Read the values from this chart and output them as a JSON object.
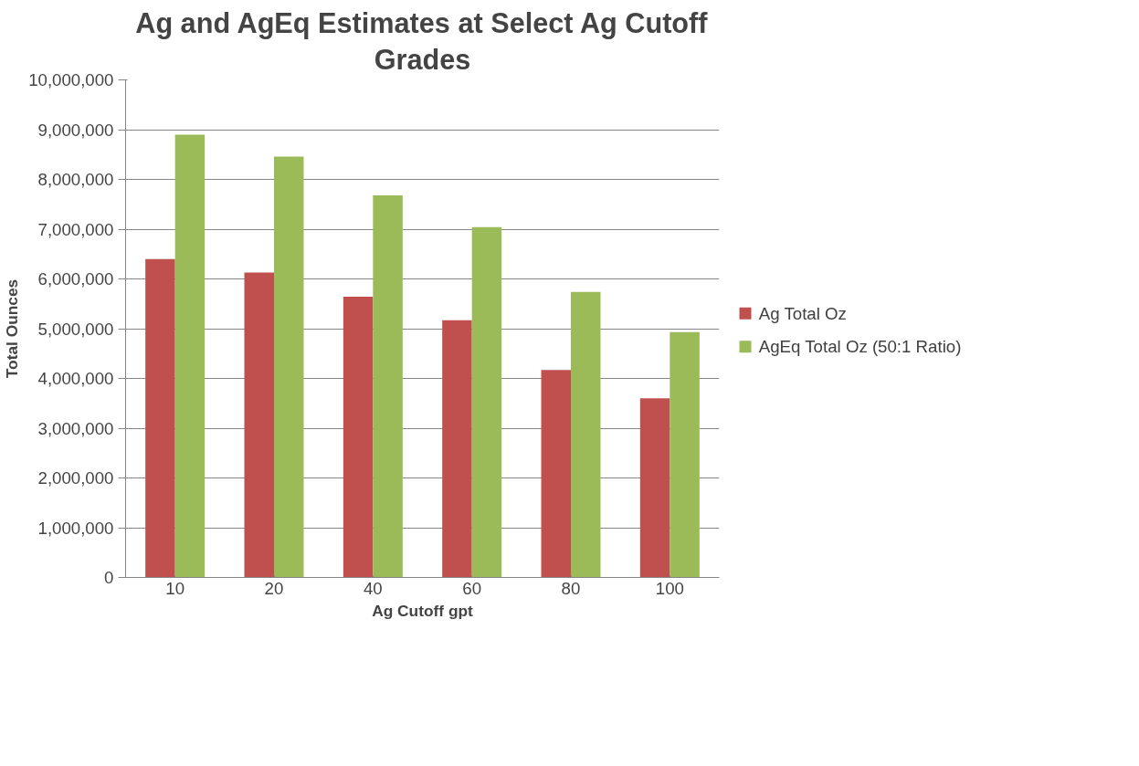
{
  "chart_data": {
    "type": "bar",
    "title": "Ag and AgEq Estimates at Select Ag Cutoff Grades",
    "xlabel": "Ag Cutoff gpt",
    "ylabel": "Total Ounces",
    "categories": [
      "10",
      "20",
      "40",
      "60",
      "80",
      "100"
    ],
    "series": [
      {
        "name": "Ag Total Oz",
        "color": "#c0504d",
        "values": [
          6400000,
          6130000,
          5640000,
          5170000,
          4170000,
          3600000
        ]
      },
      {
        "name": "AgEq Total Oz (50:1 Ratio)",
        "color": "#9bbb59",
        "values": [
          8900000,
          8460000,
          7680000,
          7040000,
          5740000,
          4930000
        ]
      }
    ],
    "ylim": [
      0,
      10000000
    ],
    "yticks": [
      0,
      {
        "value": 1000000,
        "label": "1,000,000"
      },
      {
        "value": 2000000,
        "label": "2,000,000"
      },
      {
        "value": 3000000,
        "label": "3,000,000"
      },
      {
        "value": 4000000,
        "label": "4,000,000"
      },
      {
        "value": 5000000,
        "label": "5,000,000"
      },
      {
        "value": 6000000,
        "label": "6,000,000"
      },
      {
        "value": 7000000,
        "label": "7,000,000"
      },
      {
        "value": 8000000,
        "label": "8,000,000"
      },
      {
        "value": 9000000,
        "label": "9,000,000"
      },
      {
        "value": 10000000,
        "label": "10,000,000"
      }
    ],
    "grid": "y",
    "legend": "right"
  }
}
